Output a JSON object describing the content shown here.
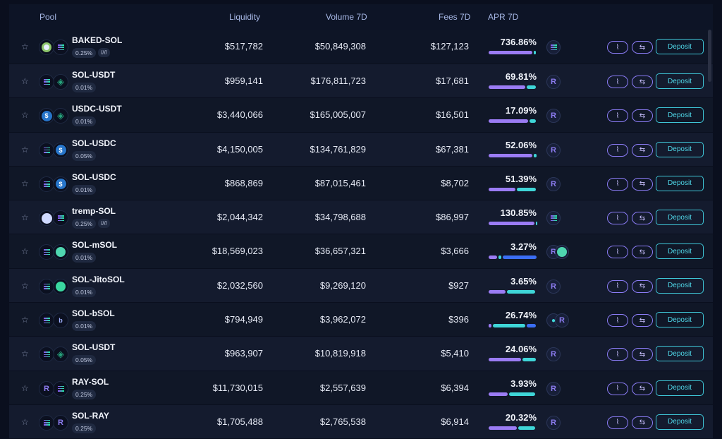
{
  "header": {
    "pool": "Pool",
    "liquidity": "Liquidity",
    "volume": "Volume 7D",
    "fees": "Fees 7D",
    "apr": "APR 7D"
  },
  "buttons": {
    "deposit": "Deposit"
  },
  "colors": {
    "accent_purple": "#8b7cf6",
    "accent_cyan": "#3fc7d8"
  },
  "rows": [
    {
      "name": "BAKED-SOL",
      "fee": "0.25%",
      "tag": "////",
      "liquidity": "$517,782",
      "volume": "$50,849,308",
      "fees": "$127,123",
      "apr": "736.86%",
      "tokA": "baked",
      "tokB": "sol",
      "reward": [
        "sol"
      ],
      "bars": [
        {
          "c": "#9b7cf4",
          "w": 62
        },
        {
          "c": "#3fd6d8",
          "w": 3
        }
      ]
    },
    {
      "name": "SOL-USDT",
      "fee": "0.01%",
      "liquidity": "$959,141",
      "volume": "$176,811,723",
      "fees": "$17,681",
      "apr": "69.81%",
      "tokA": "sol",
      "tokB": "usdt",
      "reward": [
        "ray"
      ],
      "bars": [
        {
          "c": "#9b7cf4",
          "w": 52
        },
        {
          "c": "#3fd6d8",
          "w": 13
        }
      ]
    },
    {
      "name": "USDC-USDT",
      "fee": "0.01%",
      "liquidity": "$3,440,066",
      "volume": "$165,005,007",
      "fees": "$16,501",
      "apr": "17.09%",
      "tokA": "usdc",
      "tokB": "usdt",
      "reward": [
        "ray"
      ],
      "bars": [
        {
          "c": "#9b7cf4",
          "w": 56
        },
        {
          "c": "#3fd6d8",
          "w": 9
        }
      ]
    },
    {
      "name": "SOL-USDC",
      "fee": "0.05%",
      "liquidity": "$4,150,005",
      "volume": "$134,761,829",
      "fees": "$67,381",
      "apr": "52.06%",
      "tokA": "sol",
      "tokB": "usdc",
      "reward": [
        "ray"
      ],
      "bars": [
        {
          "c": "#9b7cf4",
          "w": 62
        },
        {
          "c": "#3fd6d8",
          "w": 4
        }
      ]
    },
    {
      "name": "SOL-USDC",
      "fee": "0.01%",
      "liquidity": "$868,869",
      "volume": "$87,015,461",
      "fees": "$8,702",
      "apr": "51.39%",
      "tokA": "sol",
      "tokB": "usdc",
      "reward": [
        "ray"
      ],
      "bars": [
        {
          "c": "#9b7cf4",
          "w": 38
        },
        {
          "c": "#3fd6d8",
          "w": 27
        }
      ]
    },
    {
      "name": "tremp-SOL",
      "fee": "0.25%",
      "tag": "////",
      "liquidity": "$2,044,342",
      "volume": "$34,798,688",
      "fees": "$86,997",
      "apr": "130.85%",
      "tokA": "tremp",
      "tokB": "sol",
      "reward": [
        "sol"
      ],
      "bars": [
        {
          "c": "#9b7cf4",
          "w": 65
        },
        {
          "c": "#3fd6d8",
          "w": 2
        }
      ]
    },
    {
      "name": "SOL-mSOL",
      "fee": "0.01%",
      "liquidity": "$18,569,023",
      "volume": "$36,657,321",
      "fees": "$3,666",
      "apr": "3.27%",
      "tokA": "sol",
      "tokB": "msol",
      "reward": [
        "ray",
        "msol"
      ],
      "bars": [
        {
          "c": "#9b7cf4",
          "w": 12
        },
        {
          "c": "#3fd6d8",
          "w": 4
        },
        {
          "c": "#3b6ef5",
          "w": 48
        }
      ]
    },
    {
      "name": "SOL-JitoSOL",
      "fee": "0.01%",
      "liquidity": "$2,032,560",
      "volume": "$9,269,120",
      "fees": "$927",
      "apr": "3.65%",
      "tokA": "sol",
      "tokB": "jito",
      "reward": [
        "ray"
      ],
      "bars": [
        {
          "c": "#9b7cf4",
          "w": 24
        },
        {
          "c": "#3fd6d8",
          "w": 40
        }
      ]
    },
    {
      "name": "SOL-bSOL",
      "fee": "0.01%",
      "liquidity": "$794,949",
      "volume": "$3,962,072",
      "fees": "$396",
      "apr": "26.74%",
      "tokA": "sol",
      "tokB": "bsol",
      "reward": [
        "drop",
        "ray"
      ],
      "bars": [
        {
          "c": "#9b7cf4",
          "w": 4
        },
        {
          "c": "#3fd6d8",
          "w": 46
        },
        {
          "c": "#3b6ef5",
          "w": 13
        }
      ]
    },
    {
      "name": "SOL-USDT",
      "fee": "0.05%",
      "liquidity": "$963,907",
      "volume": "$10,819,918",
      "fees": "$5,410",
      "apr": "24.06%",
      "tokA": "sol",
      "tokB": "usdt",
      "reward": [
        "ray"
      ],
      "bars": [
        {
          "c": "#9b7cf4",
          "w": 46
        },
        {
          "c": "#3fd6d8",
          "w": 19
        }
      ]
    },
    {
      "name": "RAY-SOL",
      "fee": "0.25%",
      "liquidity": "$11,730,015",
      "volume": "$2,557,639",
      "fees": "$6,394",
      "apr": "3.93%",
      "tokA": "ray",
      "tokB": "sol",
      "reward": [
        "ray"
      ],
      "bars": [
        {
          "c": "#9b7cf4",
          "w": 27
        },
        {
          "c": "#3fd6d8",
          "w": 37
        }
      ]
    },
    {
      "name": "SOL-RAY",
      "fee": "0.25%",
      "liquidity": "$1,705,488",
      "volume": "$2,765,538",
      "fees": "$6,914",
      "apr": "20.32%",
      "tokA": "sol",
      "tokB": "ray",
      "reward": [
        "ray"
      ],
      "bars": [
        {
          "c": "#9b7cf4",
          "w": 40
        },
        {
          "c": "#3fd6d8",
          "w": 24
        }
      ]
    }
  ]
}
